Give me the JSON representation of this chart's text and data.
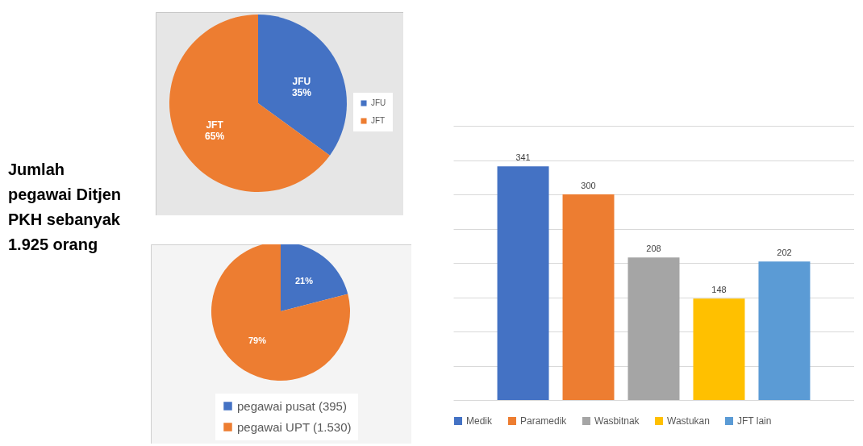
{
  "chart_data": [
    {
      "type": "other",
      "title": "Jumlah pegawai Ditjen PKH sebanyak 1.925 orang"
    },
    {
      "type": "pie",
      "categories": [
        "JFU",
        "JFT"
      ],
      "values": [
        35,
        65
      ],
      "value_labels": [
        "35%",
        "65%"
      ],
      "colors": [
        "#4472c4",
        "#ed7d31"
      ],
      "legend": "right"
    },
    {
      "type": "pie",
      "categories": [
        "pegawai pusat (395)",
        "pegawai UPT (1.530)"
      ],
      "values": [
        21,
        79
      ],
      "value_labels": [
        "21%",
        "79%"
      ],
      "colors": [
        "#4472c4",
        "#ed7d31"
      ],
      "legend": "bottom"
    },
    {
      "type": "bar",
      "categories": [
        null
      ],
      "series": [
        {
          "name": "Medik",
          "color": "#4472c4",
          "values": [
            341
          ]
        },
        {
          "name": "Paramedik",
          "color": "#ed7d31",
          "values": [
            300
          ]
        },
        {
          "name": "Wasbitnak",
          "color": "#a5a5a5",
          "values": [
            208
          ]
        },
        {
          "name": "Wastukan",
          "color": "#ffc000",
          "values": [
            148
          ]
        },
        {
          "name": "JFT lain",
          "color": "#5b9bd5",
          "values": [
            202
          ]
        }
      ],
      "ylim": [
        0,
        400
      ],
      "yticks": [
        {
          "value": 0,
          "label": null
        },
        {
          "value": 50,
          "label": null
        },
        {
          "value": 100,
          "label": null
        },
        {
          "value": 150,
          "label": null
        },
        {
          "value": 200,
          "label": null
        },
        {
          "value": 250,
          "label": null
        },
        {
          "value": 300,
          "label": null
        },
        {
          "value": 350,
          "label": null
        },
        {
          "value": 400,
          "label": null
        }
      ],
      "grid": "y",
      "tick_labels": false,
      "data_labels": true,
      "legend": "bottom"
    }
  ]
}
